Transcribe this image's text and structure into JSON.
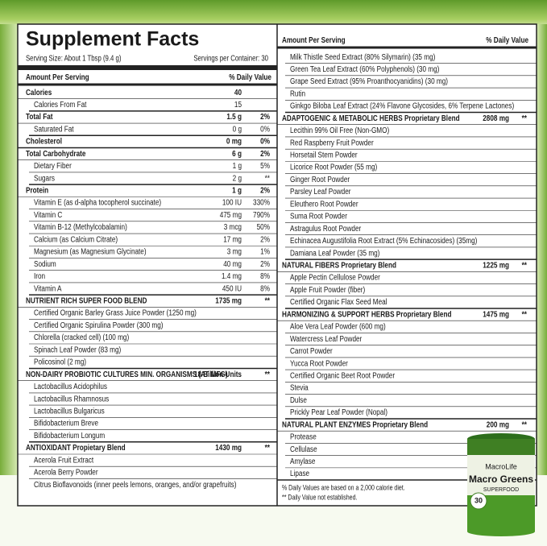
{
  "label": {
    "title": "Supplement Facts",
    "serving_size": "Serving Size: About 1 Tbsp (9.4 g)",
    "servings_per_container": "Servings per Container: 30",
    "left": {
      "header": {
        "amount": "Amount Per Serving",
        "daily_value": "% Daily Value"
      },
      "rows": [
        {
          "name": "Calories",
          "amount": "40"
        },
        {
          "name": "Calories From Fat",
          "amount": "15"
        },
        {
          "name": "Total Fat",
          "amount": "1.5 g",
          "dv": "2%"
        },
        {
          "name": "Saturated Fat",
          "amount": "0 g",
          "dv": "0%"
        },
        {
          "name": "Cholesterol",
          "amount": "0 mg",
          "dv": "0%"
        },
        {
          "name": "Total Carbohydrate",
          "amount": "6 g",
          "dv": "2%"
        },
        {
          "name": "Dietary Fiber",
          "amount": "1 g",
          "dv": "5%"
        },
        {
          "name": "Sugars",
          "amount": "2 g",
          "dv": "**"
        },
        {
          "name": "Protein",
          "amount": "1 g",
          "dv": "2%"
        },
        {
          "name": "Vitamin E (as d-alpha tocopherol succinate)",
          "amount": "100 IU",
          "dv": "330%"
        },
        {
          "name": "Vitamin C",
          "amount": "475 mg",
          "dv": "790%"
        },
        {
          "name": "Vitamin B-12 (Methylcobalamin)",
          "amount": "3 mcg",
          "dv": "50%"
        },
        {
          "name": "Calcium (as Calcium Citrate)",
          "amount": "17 mg",
          "dv": "2%"
        },
        {
          "name": "Magnesium (as Magnesium Glycinate)",
          "amount": "3 mg",
          "dv": "1%"
        },
        {
          "name": "Sodium",
          "amount": "40 mg",
          "dv": "2%"
        },
        {
          "name": "Iron",
          "amount": "1.4 mg",
          "dv": "8%"
        },
        {
          "name": "Vitamin A",
          "amount": "450 IU",
          "dv": "8%"
        },
        {
          "name": "NUTRIENT RICH SUPER FOOD BLEND",
          "amount": "1735 mg",
          "dv": "**"
        },
        {
          "name": "Certified Organic Barley Grass Juice Powder (1250 mg)"
        },
        {
          "name": "Certified Organic Spirulina Powder (300 mg)"
        },
        {
          "name": "Chlorella (cracked cell) (100 mg)"
        },
        {
          "name": "Spinach Leaf Powder (83 mg)"
        },
        {
          "name": "Policosinol (2 mg)"
        },
        {
          "name": "NON-DAIRY PROBIOTIC CULTURES MIN. ORGANISMS (AT MFG)",
          "amount": "18 Billion Units",
          "dv": "**"
        },
        {
          "name": "Lactobacillus Acidophilus"
        },
        {
          "name": "Lactobacillus Rhamnosus"
        },
        {
          "name": "Lactobacillus Bulgaricus"
        },
        {
          "name": "Bifidobacterium Breve"
        },
        {
          "name": "Bifidobacterium Longum"
        },
        {
          "name": "ANTIOXIDANT Propietary Blend",
          "amount": "1430 mg",
          "dv": "**"
        },
        {
          "name": "Acerola Fruit Extract"
        },
        {
          "name": "Acerola Berry Powder"
        },
        {
          "name": "Citrus Bioflavonoids (inner peels lemons, oranges, and/or grapefruits)"
        }
      ]
    },
    "right": {
      "header": {
        "amount": "Amount Per Serving",
        "daily_value": "% Daily Value"
      },
      "rows": [
        {
          "name": "Milk Thistle Seed Extract (80% Silymarin) (35 mg)"
        },
        {
          "name": "Green Tea Leaf Extract (60% Polyphenols) (30 mg)"
        },
        {
          "name": "Grape Seed Extract (95% Proanthocyanidins) (30 mg)"
        },
        {
          "name": "Rutin"
        },
        {
          "name": "Ginkgo Biloba Leaf Extract (24% Flavone Glycosides, 6% Terpene Lactones)"
        },
        {
          "name": "ADAPTOGENIC & METABOLIC HERBS Proprietary Blend",
          "amount": "2808 mg",
          "dv": "**"
        },
        {
          "name": "Lecithin 99% Oil Free (Non-GMO)"
        },
        {
          "name": "Red Raspberry Fruit Powder"
        },
        {
          "name": "Horsetail Stem Powder"
        },
        {
          "name": "Licorice Root Powder (55 mg)"
        },
        {
          "name": "Ginger Root Powder"
        },
        {
          "name": "Parsley Leaf Powder"
        },
        {
          "name": "Eleuthero Root Powder"
        },
        {
          "name": "Suma Root Powder"
        },
        {
          "name": "Astragulus Root Powder"
        },
        {
          "name": "Echinacea Augustifolia Root Extract (5% Echinacosides) (35mg)"
        },
        {
          "name": "Damiana Leaf Powder (35 mg)"
        },
        {
          "name": "NATURAL FIBERS Proprietary Blend",
          "amount": "1225 mg",
          "dv": "**"
        },
        {
          "name": "Apple Pectin Cellulose Powder"
        },
        {
          "name": "Apple Fruit Powder (fiber)"
        },
        {
          "name": "Certified Organic Flax Seed Meal"
        },
        {
          "name": "HARMONIZING & SUPPORT HERBS Proprietary Blend",
          "amount": "1475 mg",
          "dv": "**"
        },
        {
          "name": "Aloe Vera Leaf Powder (600 mg)"
        },
        {
          "name": "Watercress Leaf Powder"
        },
        {
          "name": "Carrot Powder"
        },
        {
          "name": "Yucca Root Powder"
        },
        {
          "name": "Certified Organic Beet Root Powder"
        },
        {
          "name": "Stevia"
        },
        {
          "name": "Dulse"
        },
        {
          "name": "Prickly Pear Leaf Powder (Nopal)"
        },
        {
          "name": "NATURAL PLANT ENZYMES Proprietary Blend",
          "amount": "200 mg",
          "dv": "**"
        },
        {
          "name": "Protease"
        },
        {
          "name": "Cellulase"
        },
        {
          "name": "Amylase"
        },
        {
          "name": "Lipase"
        }
      ],
      "footnotes": [
        "% Daily Values are based on a 2,000 calorie diet.",
        "** Daily Value not established."
      ]
    }
  },
  "product": {
    "brand": "MacroLife",
    "name": "Macro Greens",
    "subtitle": "SUPERFOOD",
    "servings": "30"
  }
}
